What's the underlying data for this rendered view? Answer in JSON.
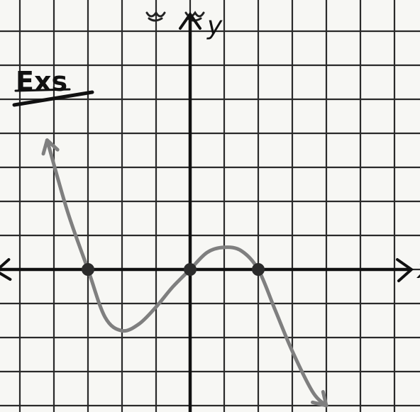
{
  "header": {
    "label": "Exs"
  },
  "chart_data": {
    "type": "line",
    "title": "",
    "xlabel": "x",
    "ylabel": "y",
    "grid": true,
    "xlim": [
      -5.7,
      6.5
    ],
    "ylim": [
      -4.2,
      7.5
    ],
    "x_intercepts": [
      -3,
      0,
      2
    ],
    "series": [
      {
        "x": [
          -4.2,
          -3.6,
          -3,
          -2.5,
          -2,
          -1.5,
          -1,
          -0.5,
          0,
          0.5,
          1,
          1.5,
          2,
          2.5,
          3,
          3.6,
          4.0
        ],
        "y": [
          3.8,
          1.7,
          0,
          -1.4,
          -1.8,
          -1.6,
          -1.1,
          -0.5,
          0,
          0.5,
          0.65,
          0.55,
          0,
          -1.2,
          -2.4,
          -3.6,
          -4.0
        ]
      }
    ],
    "colors": {
      "curve": "#7f7f7f",
      "axes": "#111111",
      "grid": "#2a2a2a"
    }
  }
}
